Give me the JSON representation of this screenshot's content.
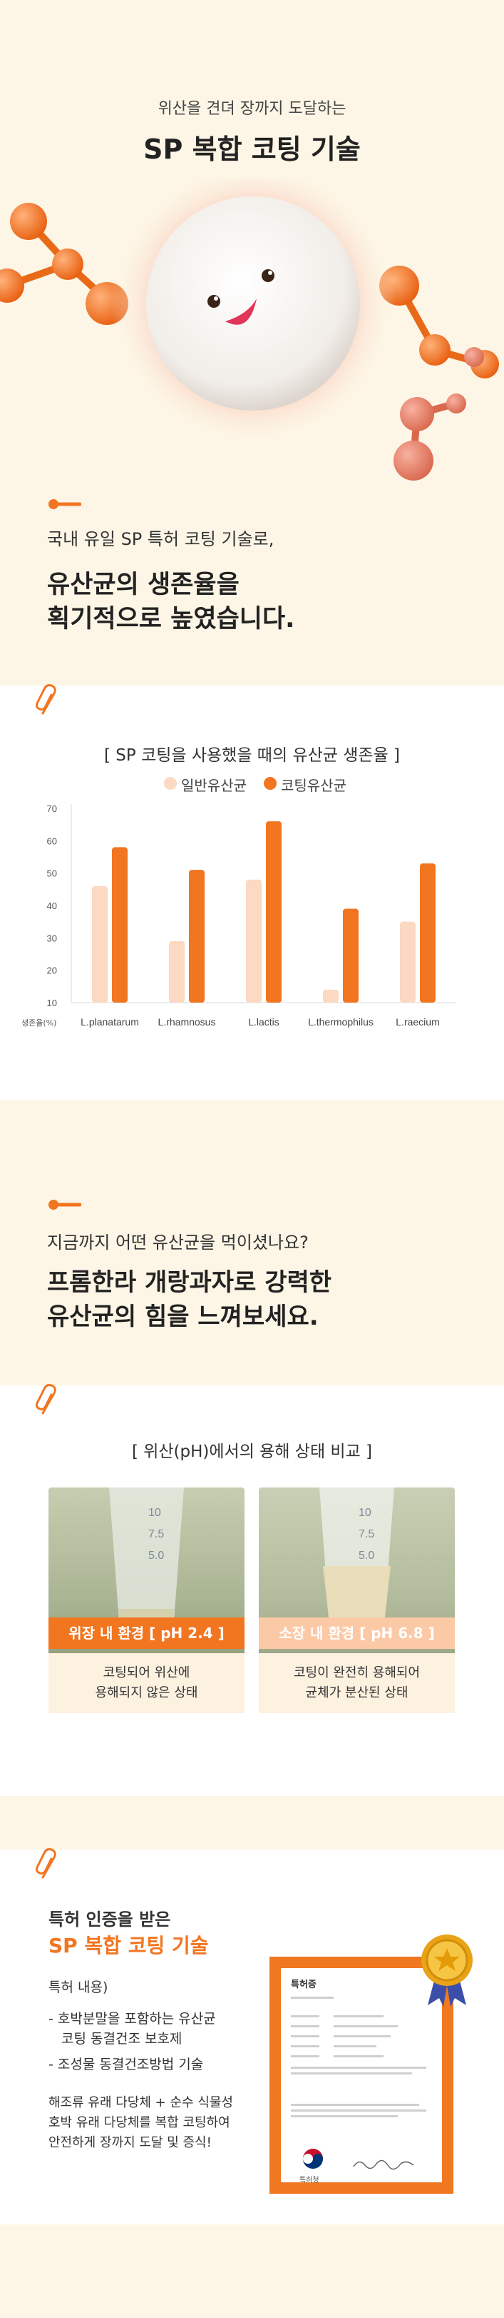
{
  "hero": {
    "subtitle": "위산을 견뎌 장까지 도달하는",
    "title": "SP 복합 코팅 기술"
  },
  "intro": {
    "lead": "국내 유일 SP 특허 코팅 기술로,",
    "headline_line1": "유산균의 생존율을",
    "headline_line2": "획기적으로 높였습니다."
  },
  "survival_chart": {
    "caption": "[ SP 코팅을 사용했을 때의 유산균 생존율 ]",
    "legend_general": "일반유산균",
    "legend_coated": "코팅유산균"
  },
  "chart_data": {
    "type": "bar",
    "title": "[ SP 코팅을 사용했을 때의 유산균 생존율 ]",
    "xlabel": "",
    "ylabel": "생존율(%)",
    "ylim": [
      10,
      70
    ],
    "yticks": [
      10,
      20,
      30,
      40,
      50,
      60,
      70
    ],
    "categories": [
      "L.planatarum",
      "L.rhamnosus",
      "L.lactis",
      "L.thermophilus",
      "L.raecium"
    ],
    "series": [
      {
        "name": "일반유산균",
        "values": [
          46,
          29,
          48,
          14,
          35
        ],
        "color": "#fbd9c3"
      },
      {
        "name": "코팅유산균",
        "values": [
          58,
          51,
          66,
          39,
          53
        ],
        "color": "#f27520"
      }
    ],
    "grid": false,
    "legend_position": "top-center"
  },
  "section2": {
    "lead": "지금까지 어떤 유산균을 먹이셨나요?",
    "headline_line1": "프롬한라 개랑과자로 강력한",
    "headline_line2": "유산균의 힘을 느껴보세요."
  },
  "ph_compare": {
    "caption": "[ 위산(pH)에서의 용해 상태 비교 ]",
    "tube_marks": [
      "10",
      "7.5",
      "5.0"
    ],
    "left": {
      "label": "위장 내 환경 [ pH 2.4 ]",
      "desc_line1": "코팅되어 위산에",
      "desc_line2": "용해되지 않은 상태",
      "color": "#f27520"
    },
    "right": {
      "label": "소장 내 환경 [ pH 6.8 ]",
      "desc_line1": "코팅이 완전히 용해되어",
      "desc_line2": "균체가 분산된 상태",
      "color": "#fcc9a6"
    }
  },
  "patent": {
    "lead": "특허 인증을 받은",
    "headline": "SP 복합 코팅 기술",
    "content_title": "특허 내용)",
    "item1_line1": "- 호박분말을 포함하는 유산균",
    "item1_line2": "코팅 동결건조 보호제",
    "item2": "- 조성물 동결건조방법 기술",
    "summary_line1": "해조류 유래 다당체 + 순수 식물성",
    "summary_line2": "호박 유래 다당체를 복합 코팅하여",
    "summary_line3": "안전하게 장까지 도달 및 증식!",
    "cert_title": "특허증",
    "cert_issuer": "특허청"
  }
}
